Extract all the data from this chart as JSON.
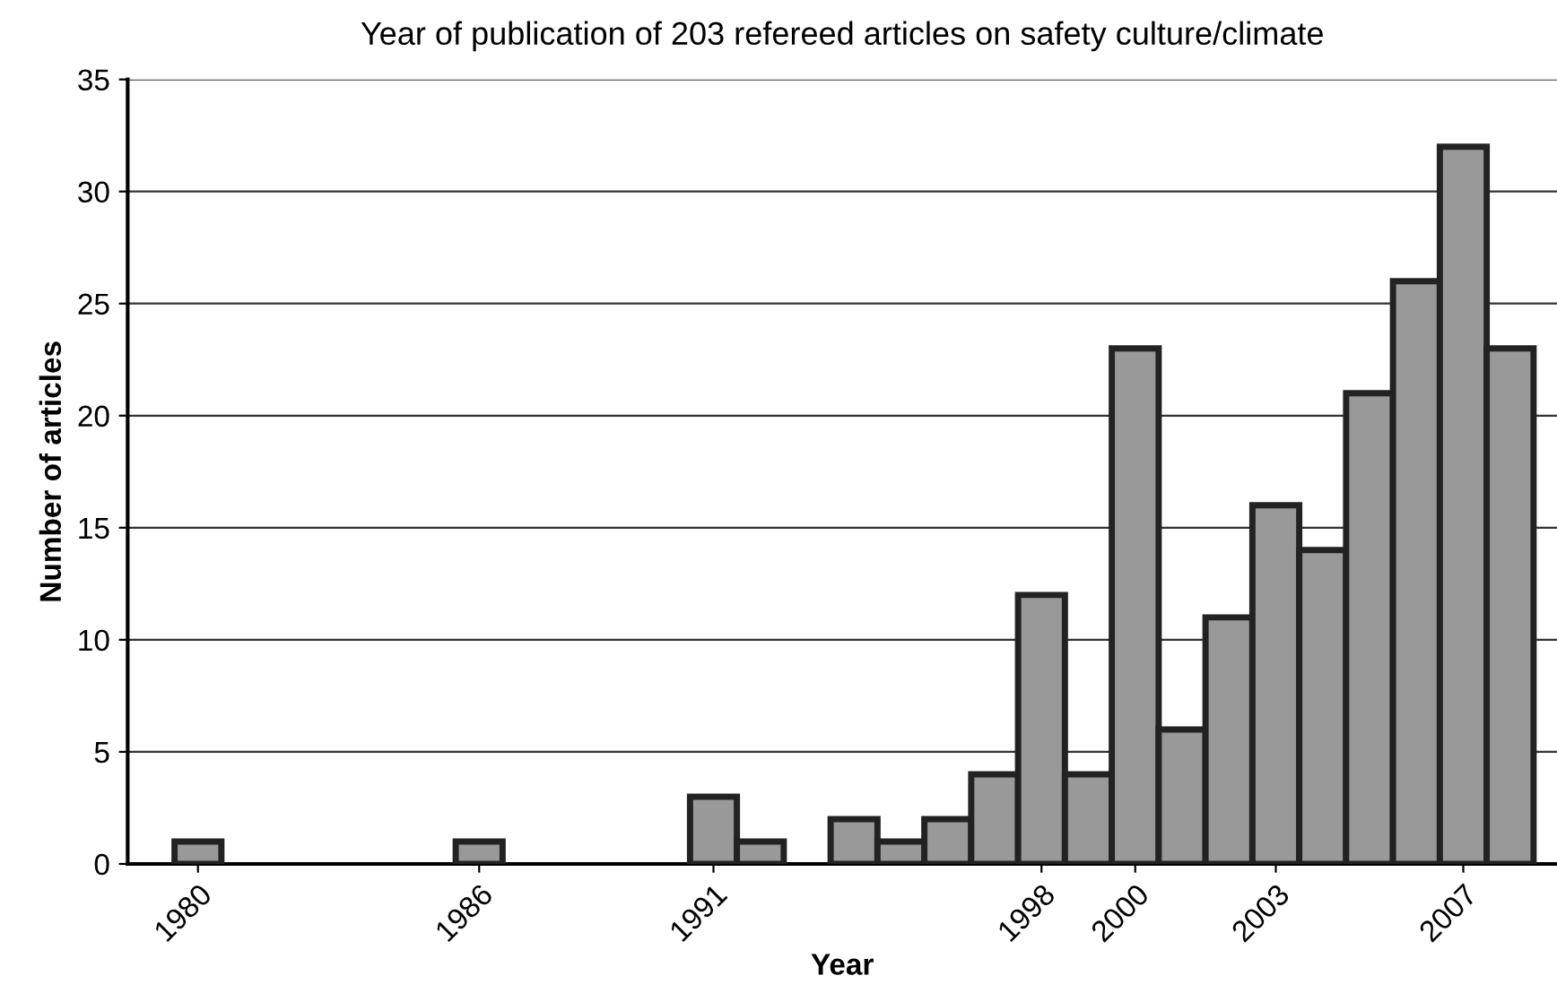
{
  "chart_data": {
    "type": "bar",
    "title": "Year of publication of 203 refereed articles on safety culture/climate",
    "xlabel": "Year",
    "ylabel": "Number of articles",
    "x": [
      1980,
      1986,
      1991,
      1992,
      1994,
      1995,
      1996,
      1997,
      1998,
      1999,
      2000,
      2001,
      2002,
      2003,
      2004,
      2005,
      2006,
      2007,
      2008
    ],
    "values": [
      1,
      1,
      3,
      1,
      2,
      1,
      2,
      4,
      12,
      4,
      23,
      6,
      11,
      16,
      14,
      21,
      26,
      32,
      23
    ],
    "color": "#999999",
    "xlim": [
      1978.5,
      2009
    ],
    "xticks": [
      1980,
      1986,
      1991,
      1998,
      2000,
      2003,
      2007
    ],
    "ylim": [
      0,
      35
    ],
    "yticks": [
      0,
      5,
      10,
      15,
      20,
      25,
      30,
      35
    ],
    "grid": "y",
    "legend": false
  }
}
